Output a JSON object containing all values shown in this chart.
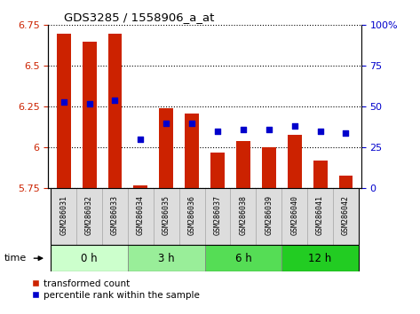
{
  "title": "GDS3285 / 1558906_a_at",
  "samples": [
    "GSM286031",
    "GSM286032",
    "GSM286033",
    "GSM286034",
    "GSM286035",
    "GSM286036",
    "GSM286037",
    "GSM286038",
    "GSM286039",
    "GSM286040",
    "GSM286041",
    "GSM286042"
  ],
  "transformed_count": [
    6.7,
    6.65,
    6.7,
    5.77,
    6.24,
    6.21,
    5.97,
    6.04,
    6.0,
    6.08,
    5.92,
    5.83
  ],
  "percentile_rank_pct": [
    53,
    52,
    54,
    30,
    40,
    40,
    35,
    36,
    36,
    38,
    35,
    34
  ],
  "bar_color": "#cc2200",
  "dot_color": "#0000cc",
  "ylim": [
    5.75,
    6.75
  ],
  "y_ticks": [
    5.75,
    6.0,
    6.25,
    6.5,
    6.75
  ],
  "y_tick_labels": [
    "5.75",
    "6",
    "6.25",
    "6.5",
    "6.75"
  ],
  "right_ylim": [
    0,
    100
  ],
  "right_yticks": [
    0,
    25,
    50,
    75,
    100
  ],
  "right_yticklabels": [
    "0",
    "25",
    "50",
    "75",
    "100%"
  ],
  "time_groups": [
    {
      "label": "0 h",
      "start": 0,
      "end": 3,
      "color": "#ccffcc"
    },
    {
      "label": "3 h",
      "start": 3,
      "end": 6,
      "color": "#99ee99"
    },
    {
      "label": "6 h",
      "start": 6,
      "end": 9,
      "color": "#55dd55"
    },
    {
      "label": "12 h",
      "start": 9,
      "end": 12,
      "color": "#22cc22"
    }
  ],
  "time_label": "time",
  "legend_bar_label": "transformed count",
  "legend_dot_label": "percentile rank within the sample",
  "ylabel_color_left": "#cc2200",
  "ylabel_color_right": "#0000cc"
}
